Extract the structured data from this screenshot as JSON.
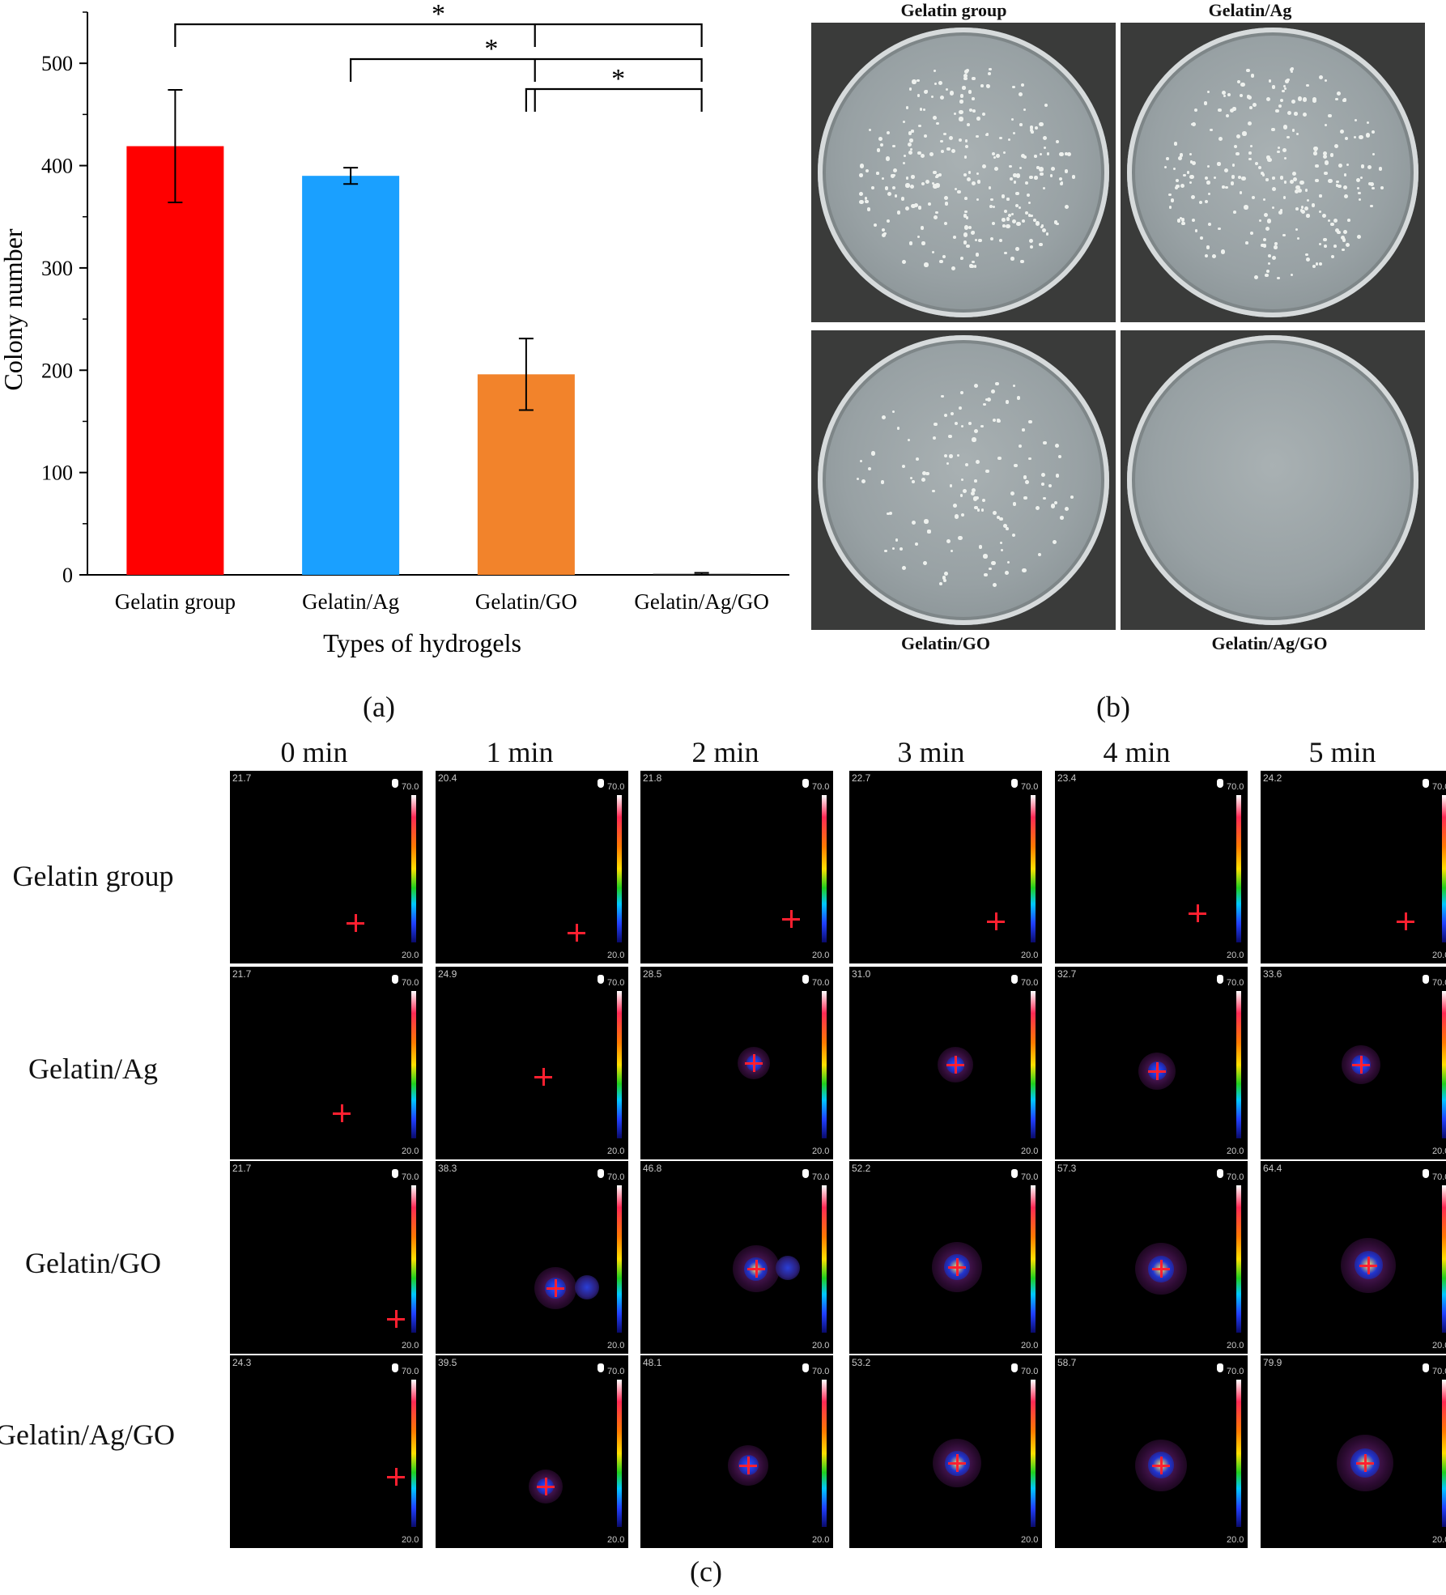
{
  "panel_labels": {
    "a": "(a)",
    "b": "(b)",
    "c": "(c)"
  },
  "chart_data": {
    "type": "bar",
    "title": "",
    "xlabel": "Types of hydrogels",
    "ylabel": "Colony number",
    "categories": [
      "Gelatin group",
      "Gelatin/Ag",
      "Gelatin/GO",
      "Gelatin/Ag/GO"
    ],
    "values": [
      419,
      390,
      196,
      1
    ],
    "error": [
      55,
      8,
      35,
      1
    ],
    "colors": [
      "#ff0000",
      "#1aa0ff",
      "#f2832b",
      "#222222"
    ],
    "ylim": [
      0,
      550
    ],
    "yticks": [
      0,
      100,
      200,
      300,
      400,
      500
    ],
    "significance": [
      {
        "from": 0,
        "to": 3,
        "label": "*"
      },
      {
        "from": 1,
        "to": 3,
        "label": "*"
      },
      {
        "from": 2,
        "to": 3,
        "label": "*"
      }
    ]
  },
  "plates": {
    "top_labels": [
      "Gelatin group",
      "Gelatin/Ag"
    ],
    "bottom_labels": [
      "Gelatin/GO",
      "Gelatin/Ag/GO"
    ],
    "colony_density": [
      1.0,
      0.95,
      0.5,
      0.0
    ]
  },
  "thermal": {
    "times": [
      "0 min",
      "1 min",
      "2 min",
      "3 min",
      "4 min",
      "5 min"
    ],
    "rows": [
      {
        "label": "Gelatin group",
        "temps": [
          "21.7",
          "20.4",
          "21.8",
          "22.7",
          "23.4",
          "24.2"
        ]
      },
      {
        "label": "Gelatin/Ag",
        "temps": [
          "21.7",
          "24.9",
          "28.5",
          "31.0",
          "32.7",
          "33.6"
        ]
      },
      {
        "label": "Gelatin/GO",
        "temps": [
          "21.7",
          "38.3",
          "46.8",
          "52.2",
          "57.3",
          "64.4"
        ]
      },
      {
        "label": "Gelatin/Ag/GO",
        "temps": [
          "24.3",
          "39.5",
          "48.1",
          "53.2",
          "58.7",
          "79.9"
        ]
      }
    ],
    "scale_max": "70.0",
    "scale_min": "20.0"
  }
}
